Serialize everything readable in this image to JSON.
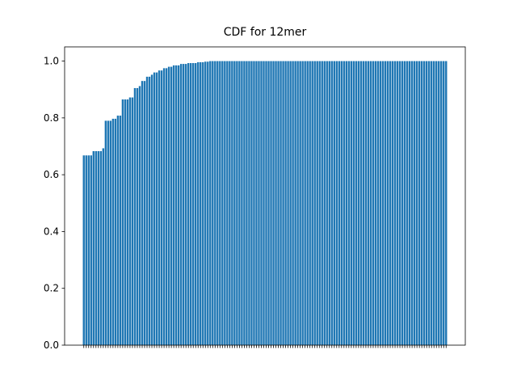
{
  "chart_data": {
    "type": "bar",
    "title": "CDF for 12mer",
    "categories": [
      null,
      null,
      null,
      null,
      null,
      null,
      null,
      null,
      null,
      null,
      null,
      null,
      null,
      null,
      null,
      null,
      null,
      null,
      null,
      null,
      null,
      null,
      null,
      null,
      null,
      null,
      null,
      null,
      null,
      null,
      null,
      null,
      null,
      null,
      null,
      null,
      null,
      null,
      null,
      null,
      null,
      null,
      null,
      null,
      null,
      null,
      null,
      null,
      null,
      null,
      null,
      null,
      null,
      null,
      null,
      null,
      null,
      null,
      null,
      null,
      null,
      null,
      null,
      null,
      null,
      null,
      null,
      null,
      null,
      null,
      null,
      null,
      null,
      null,
      null,
      null,
      null,
      null,
      null,
      null,
      null,
      null,
      null,
      null,
      null,
      null,
      null,
      null,
      null,
      null,
      null,
      null,
      null,
      null,
      null,
      null,
      null,
      null,
      null,
      null,
      null,
      null,
      null,
      null,
      null,
      null,
      null,
      null,
      null,
      null,
      null,
      null,
      null,
      null,
      null,
      null,
      null,
      null,
      null,
      null,
      null,
      null,
      null,
      null,
      null,
      null,
      null,
      null,
      null,
      null,
      null,
      null,
      null,
      null,
      null,
      null,
      null,
      null,
      null,
      null,
      null,
      null,
      null,
      null,
      null,
      null,
      null,
      null,
      null,
      null
    ],
    "values": [
      0.668,
      0.668,
      0.668,
      0.668,
      0.683,
      0.683,
      0.683,
      0.683,
      0.693,
      0.79,
      0.79,
      0.79,
      0.797,
      0.797,
      0.808,
      0.808,
      0.865,
      0.865,
      0.865,
      0.872,
      0.872,
      0.905,
      0.905,
      0.912,
      0.93,
      0.93,
      0.945,
      0.945,
      0.952,
      0.96,
      0.96,
      0.967,
      0.967,
      0.975,
      0.975,
      0.98,
      0.98,
      0.985,
      0.985,
      0.985,
      0.99,
      0.99,
      0.99,
      0.993,
      0.993,
      0.993,
      0.993,
      0.996,
      0.996,
      0.996,
      0.998,
      0.998,
      1,
      1,
      1,
      1,
      1,
      1,
      1,
      1,
      1,
      1,
      1,
      1,
      1,
      1,
      1,
      1,
      1,
      1,
      1,
      1,
      1,
      1,
      1,
      1,
      1,
      1,
      1,
      1,
      1,
      1,
      1,
      1,
      1,
      1,
      1,
      1,
      1,
      1,
      1,
      1,
      1,
      1,
      1,
      1,
      1,
      1,
      1,
      1,
      1,
      1,
      1,
      1,
      1,
      1,
      1,
      1,
      1,
      1,
      1,
      1,
      1,
      1,
      1,
      1,
      1,
      1,
      1,
      1,
      1,
      1,
      1,
      1,
      1,
      1,
      1,
      1,
      1,
      1,
      1,
      1,
      1,
      1,
      1,
      1,
      1,
      1,
      1,
      1,
      1,
      1,
      1,
      1,
      1,
      1,
      1,
      1,
      1,
      1
    ],
    "color": "#1f77b4",
    "ylim": [
      0,
      1.05
    ],
    "yticks": [
      {
        "value": 0,
        "label": "0.0"
      },
      0.2,
      0.4,
      0.6,
      0.8,
      {
        "value": 1,
        "label": "1.0"
      }
    ],
    "grid": false
  }
}
